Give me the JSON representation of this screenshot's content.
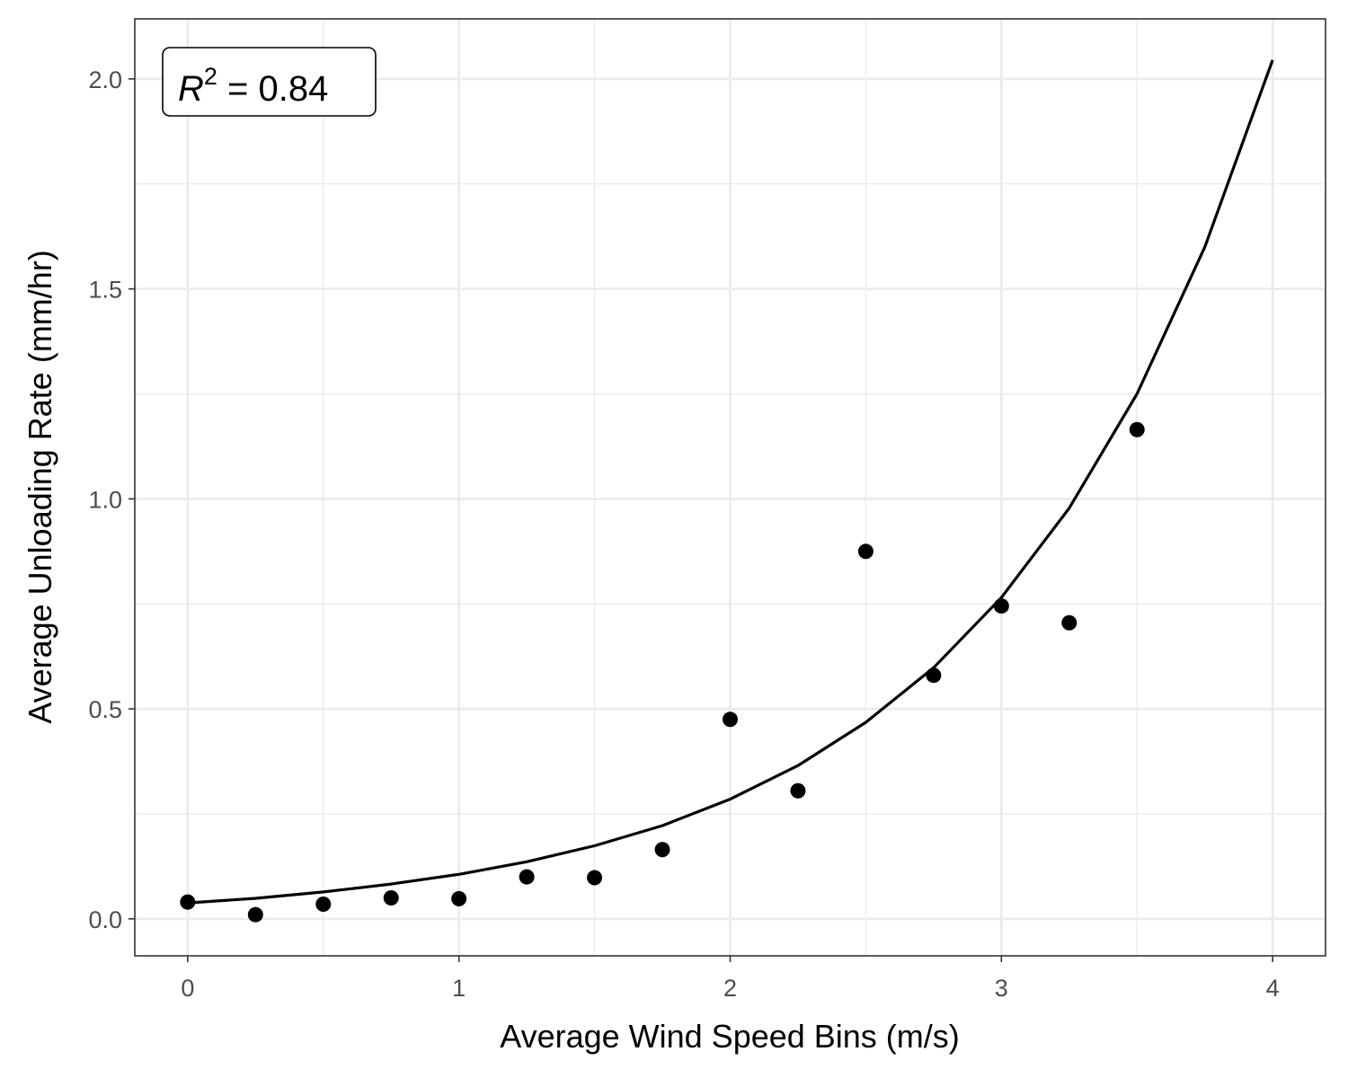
{
  "chart_data": {
    "type": "scatter",
    "title": "",
    "xlabel": "Average Wind Speed Bins (m/s)",
    "ylabel": "Average Unloading Rate (mm/hr)",
    "xlim": [
      -0.195,
      4.195
    ],
    "ylim": [
      -0.088,
      2.143
    ],
    "x_ticks": [
      0,
      1,
      2,
      3,
      4
    ],
    "x_tick_labels": [
      "0",
      "1",
      "2",
      "3",
      "4"
    ],
    "y_ticks": [
      0.0,
      0.5,
      1.0,
      1.5,
      2.0
    ],
    "y_tick_labels": [
      "0.0",
      "0.5",
      "1.0",
      "1.5",
      "2.0"
    ],
    "grid": true,
    "annotation": {
      "r_symbol": "R",
      "superscript": "2",
      "value_text": " = 0.84"
    },
    "series": [
      {
        "kind": "points",
        "x": [
          0,
          0.25,
          0.5,
          0.75,
          1.0,
          1.25,
          1.5,
          1.75,
          2.0,
          2.25,
          2.5,
          2.75,
          3.0,
          3.25,
          3.5
        ],
        "y": [
          0.04,
          0.01,
          0.035,
          0.05,
          0.048,
          0.1,
          0.098,
          0.165,
          0.475,
          0.305,
          0.875,
          0.58,
          0.745,
          0.705,
          1.165
        ]
      },
      {
        "kind": "fit-line",
        "x": [
          0,
          0.25,
          0.5,
          0.75,
          1.0,
          1.25,
          1.5,
          1.75,
          2.0,
          2.25,
          2.5,
          2.75,
          3.0,
          3.25,
          3.5,
          3.75,
          4.0
        ],
        "y": [
          0.038,
          0.049,
          0.064,
          0.083,
          0.106,
          0.136,
          0.174,
          0.222,
          0.285,
          0.365,
          0.468,
          0.598,
          0.765,
          0.978,
          1.25,
          1.6,
          2.045
        ]
      }
    ]
  }
}
